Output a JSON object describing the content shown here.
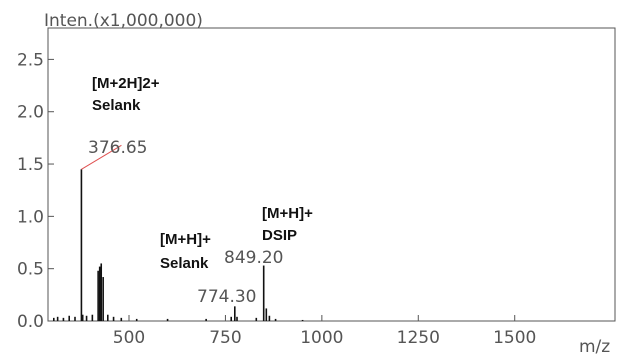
{
  "chart_data": {
    "type": "bar",
    "ylabel": "Inten.(x1,000,000)",
    "xlabel": "m/z",
    "xlim": [
      290,
      1760
    ],
    "ylim": [
      0,
      2.8
    ],
    "x_ticks": [
      500,
      750,
      1000,
      1250,
      1500
    ],
    "y_ticks": [
      0.0,
      0.5,
      1.0,
      1.5,
      2.0,
      2.5
    ],
    "y_tick_labels": [
      "0.0",
      "0.5",
      "1.0",
      "1.5",
      "2.0",
      "2.5"
    ],
    "x_tick_labels": [
      "500",
      "750",
      "1000",
      "1250",
      "1500"
    ],
    "grid": false,
    "peaks": [
      {
        "mz": 305,
        "intensity": 0.03
      },
      {
        "mz": 315,
        "intensity": 0.04
      },
      {
        "mz": 330,
        "intensity": 0.03
      },
      {
        "mz": 345,
        "intensity": 0.05
      },
      {
        "mz": 360,
        "intensity": 0.04
      },
      {
        "mz": 376.65,
        "intensity": 1.45
      },
      {
        "mz": 380,
        "intensity": 0.06
      },
      {
        "mz": 390,
        "intensity": 0.05
      },
      {
        "mz": 405,
        "intensity": 0.06
      },
      {
        "mz": 420,
        "intensity": 0.48
      },
      {
        "mz": 424,
        "intensity": 0.52
      },
      {
        "mz": 428,
        "intensity": 0.55
      },
      {
        "mz": 433,
        "intensity": 0.42
      },
      {
        "mz": 445,
        "intensity": 0.06
      },
      {
        "mz": 460,
        "intensity": 0.04
      },
      {
        "mz": 480,
        "intensity": 0.03
      },
      {
        "mz": 520,
        "intensity": 0.02
      },
      {
        "mz": 600,
        "intensity": 0.02
      },
      {
        "mz": 700,
        "intensity": 0.02
      },
      {
        "mz": 765,
        "intensity": 0.04
      },
      {
        "mz": 774.3,
        "intensity": 0.14
      },
      {
        "mz": 780,
        "intensity": 0.04
      },
      {
        "mz": 830,
        "intensity": 0.03
      },
      {
        "mz": 849.2,
        "intensity": 0.53
      },
      {
        "mz": 856,
        "intensity": 0.12
      },
      {
        "mz": 864,
        "intensity": 0.05
      },
      {
        "mz": 880,
        "intensity": 0.02
      },
      {
        "mz": 950,
        "intensity": 0.01
      }
    ],
    "peak_labels": [
      {
        "text": "376.65",
        "mz": 376.65
      },
      {
        "text": "849.20",
        "mz": 849.2
      },
      {
        "text": "774.30",
        "mz": 774.3
      }
    ],
    "annotations": [
      {
        "line1": "[M+2H]2+",
        "line2": "Selank"
      },
      {
        "line1": "[M+H]+",
        "line2": "DSIP"
      },
      {
        "line1": "[M+H]+",
        "line2": "Selank"
      }
    ],
    "colors": {
      "peak": "#111111",
      "callout": "#e05050",
      "frame": "#555555"
    }
  }
}
